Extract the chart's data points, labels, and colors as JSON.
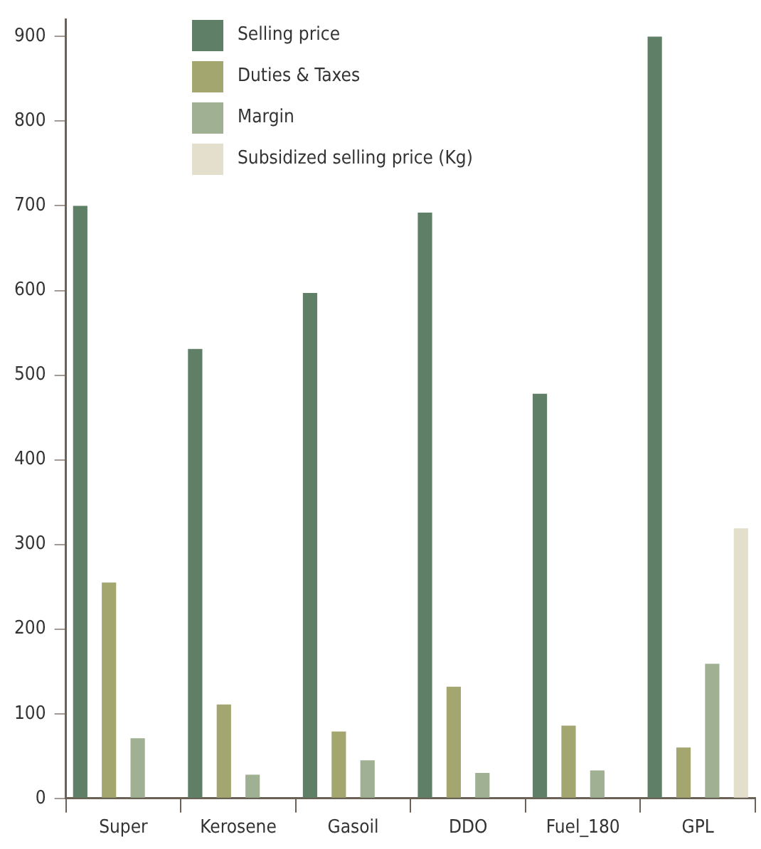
{
  "chart_data": {
    "type": "bar",
    "categories": [
      "Super",
      "Kerosene",
      "Gasoil",
      "DDO",
      "Fuel_180",
      "GPL"
    ],
    "series": [
      {
        "name": "Selling price",
        "color": "#5f8066",
        "values": [
          700,
          531,
          597,
          692,
          478,
          900
        ]
      },
      {
        "name": "Duties & Taxes",
        "color": "#a4a66f",
        "values": [
          255,
          111,
          79,
          132,
          86,
          60
        ]
      },
      {
        "name": "Margin",
        "color": "#9fb093",
        "values": [
          71,
          28,
          45,
          30,
          33,
          159
        ]
      },
      {
        "name": "Subsidized selling price (Kg)",
        "color": "#e4dfcc",
        "values": [
          null,
          null,
          null,
          null,
          null,
          319
        ]
      }
    ],
    "ylim": [
      0,
      920
    ],
    "yticks": [
      0,
      100,
      200,
      300,
      400,
      500,
      600,
      700,
      800,
      900
    ],
    "grid": false,
    "legend": "top left"
  }
}
